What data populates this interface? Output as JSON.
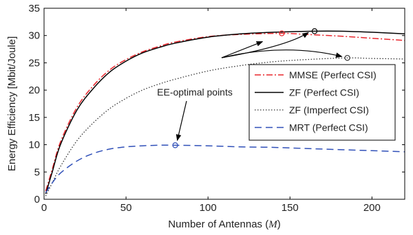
{
  "chart_data": {
    "type": "line",
    "xlabel_prefix": "Number of Antennas (",
    "xlabel_symbol": "M",
    "xlabel_suffix": ")",
    "ylabel": "Energy Efficiency [Mbit/Joule]",
    "xlim": [
      0,
      220
    ],
    "ylim": [
      0,
      35
    ],
    "xticks": [
      0,
      50,
      100,
      150,
      200
    ],
    "yticks": [
      0,
      5,
      10,
      15,
      20,
      25,
      30,
      35
    ],
    "grid": false,
    "legend_position": "right",
    "series": [
      {
        "name": "MMSE (Perfect CSI)",
        "color": "#e8262c",
        "dash": "dashdot",
        "x": [
          1,
          5,
          10,
          20,
          30,
          40,
          50,
          60,
          70,
          80,
          100,
          120,
          145,
          160,
          180,
          200,
          220
        ],
        "y": [
          1.5,
          5.5,
          10.5,
          16.8,
          20.8,
          23.7,
          25.6,
          27.0,
          28.0,
          28.8,
          29.8,
          30.2,
          30.4,
          30.2,
          29.9,
          29.5,
          29.1
        ],
        "optimal_point": {
          "x": 145,
          "y": 30.4
        }
      },
      {
        "name": "ZF (Perfect CSI)",
        "color": "#000000",
        "dash": "solid",
        "x": [
          1,
          5,
          10,
          20,
          30,
          40,
          50,
          60,
          70,
          80,
          100,
          120,
          140,
          165,
          180,
          200,
          220
        ],
        "y": [
          1.0,
          5.0,
          10.0,
          16.3,
          20.3,
          23.3,
          25.3,
          26.8,
          27.8,
          28.6,
          29.7,
          30.3,
          30.6,
          30.8,
          30.8,
          30.6,
          30.3
        ],
        "optimal_point": {
          "x": 165,
          "y": 30.8
        }
      },
      {
        "name": "ZF (Imperfect CSI)",
        "color": "#333333",
        "dash": "dotted",
        "x": [
          1,
          5,
          10,
          20,
          30,
          40,
          50,
          60,
          70,
          80,
          100,
          120,
          140,
          160,
          185,
          200,
          220
        ],
        "y": [
          0.6,
          3.0,
          6.0,
          10.7,
          14.0,
          16.6,
          18.5,
          20.0,
          21.1,
          22.0,
          23.5,
          24.5,
          25.2,
          25.6,
          25.9,
          25.8,
          25.7
        ],
        "optimal_point": {
          "x": 185,
          "y": 25.9
        }
      },
      {
        "name": "MRT (Perfect CSI)",
        "color": "#2f4fb8",
        "dash": "dashed",
        "x": [
          1,
          5,
          10,
          20,
          30,
          40,
          50,
          60,
          70,
          80,
          100,
          120,
          140,
          160,
          180,
          200,
          220
        ],
        "y": [
          1.2,
          3.0,
          4.8,
          7.0,
          8.4,
          9.2,
          9.6,
          9.8,
          9.9,
          9.9,
          9.8,
          9.6,
          9.5,
          9.3,
          9.1,
          8.9,
          8.7
        ],
        "optimal_point": {
          "x": 80,
          "y": 9.9
        }
      }
    ],
    "annotation": {
      "text": "EE-optimal points"
    }
  }
}
